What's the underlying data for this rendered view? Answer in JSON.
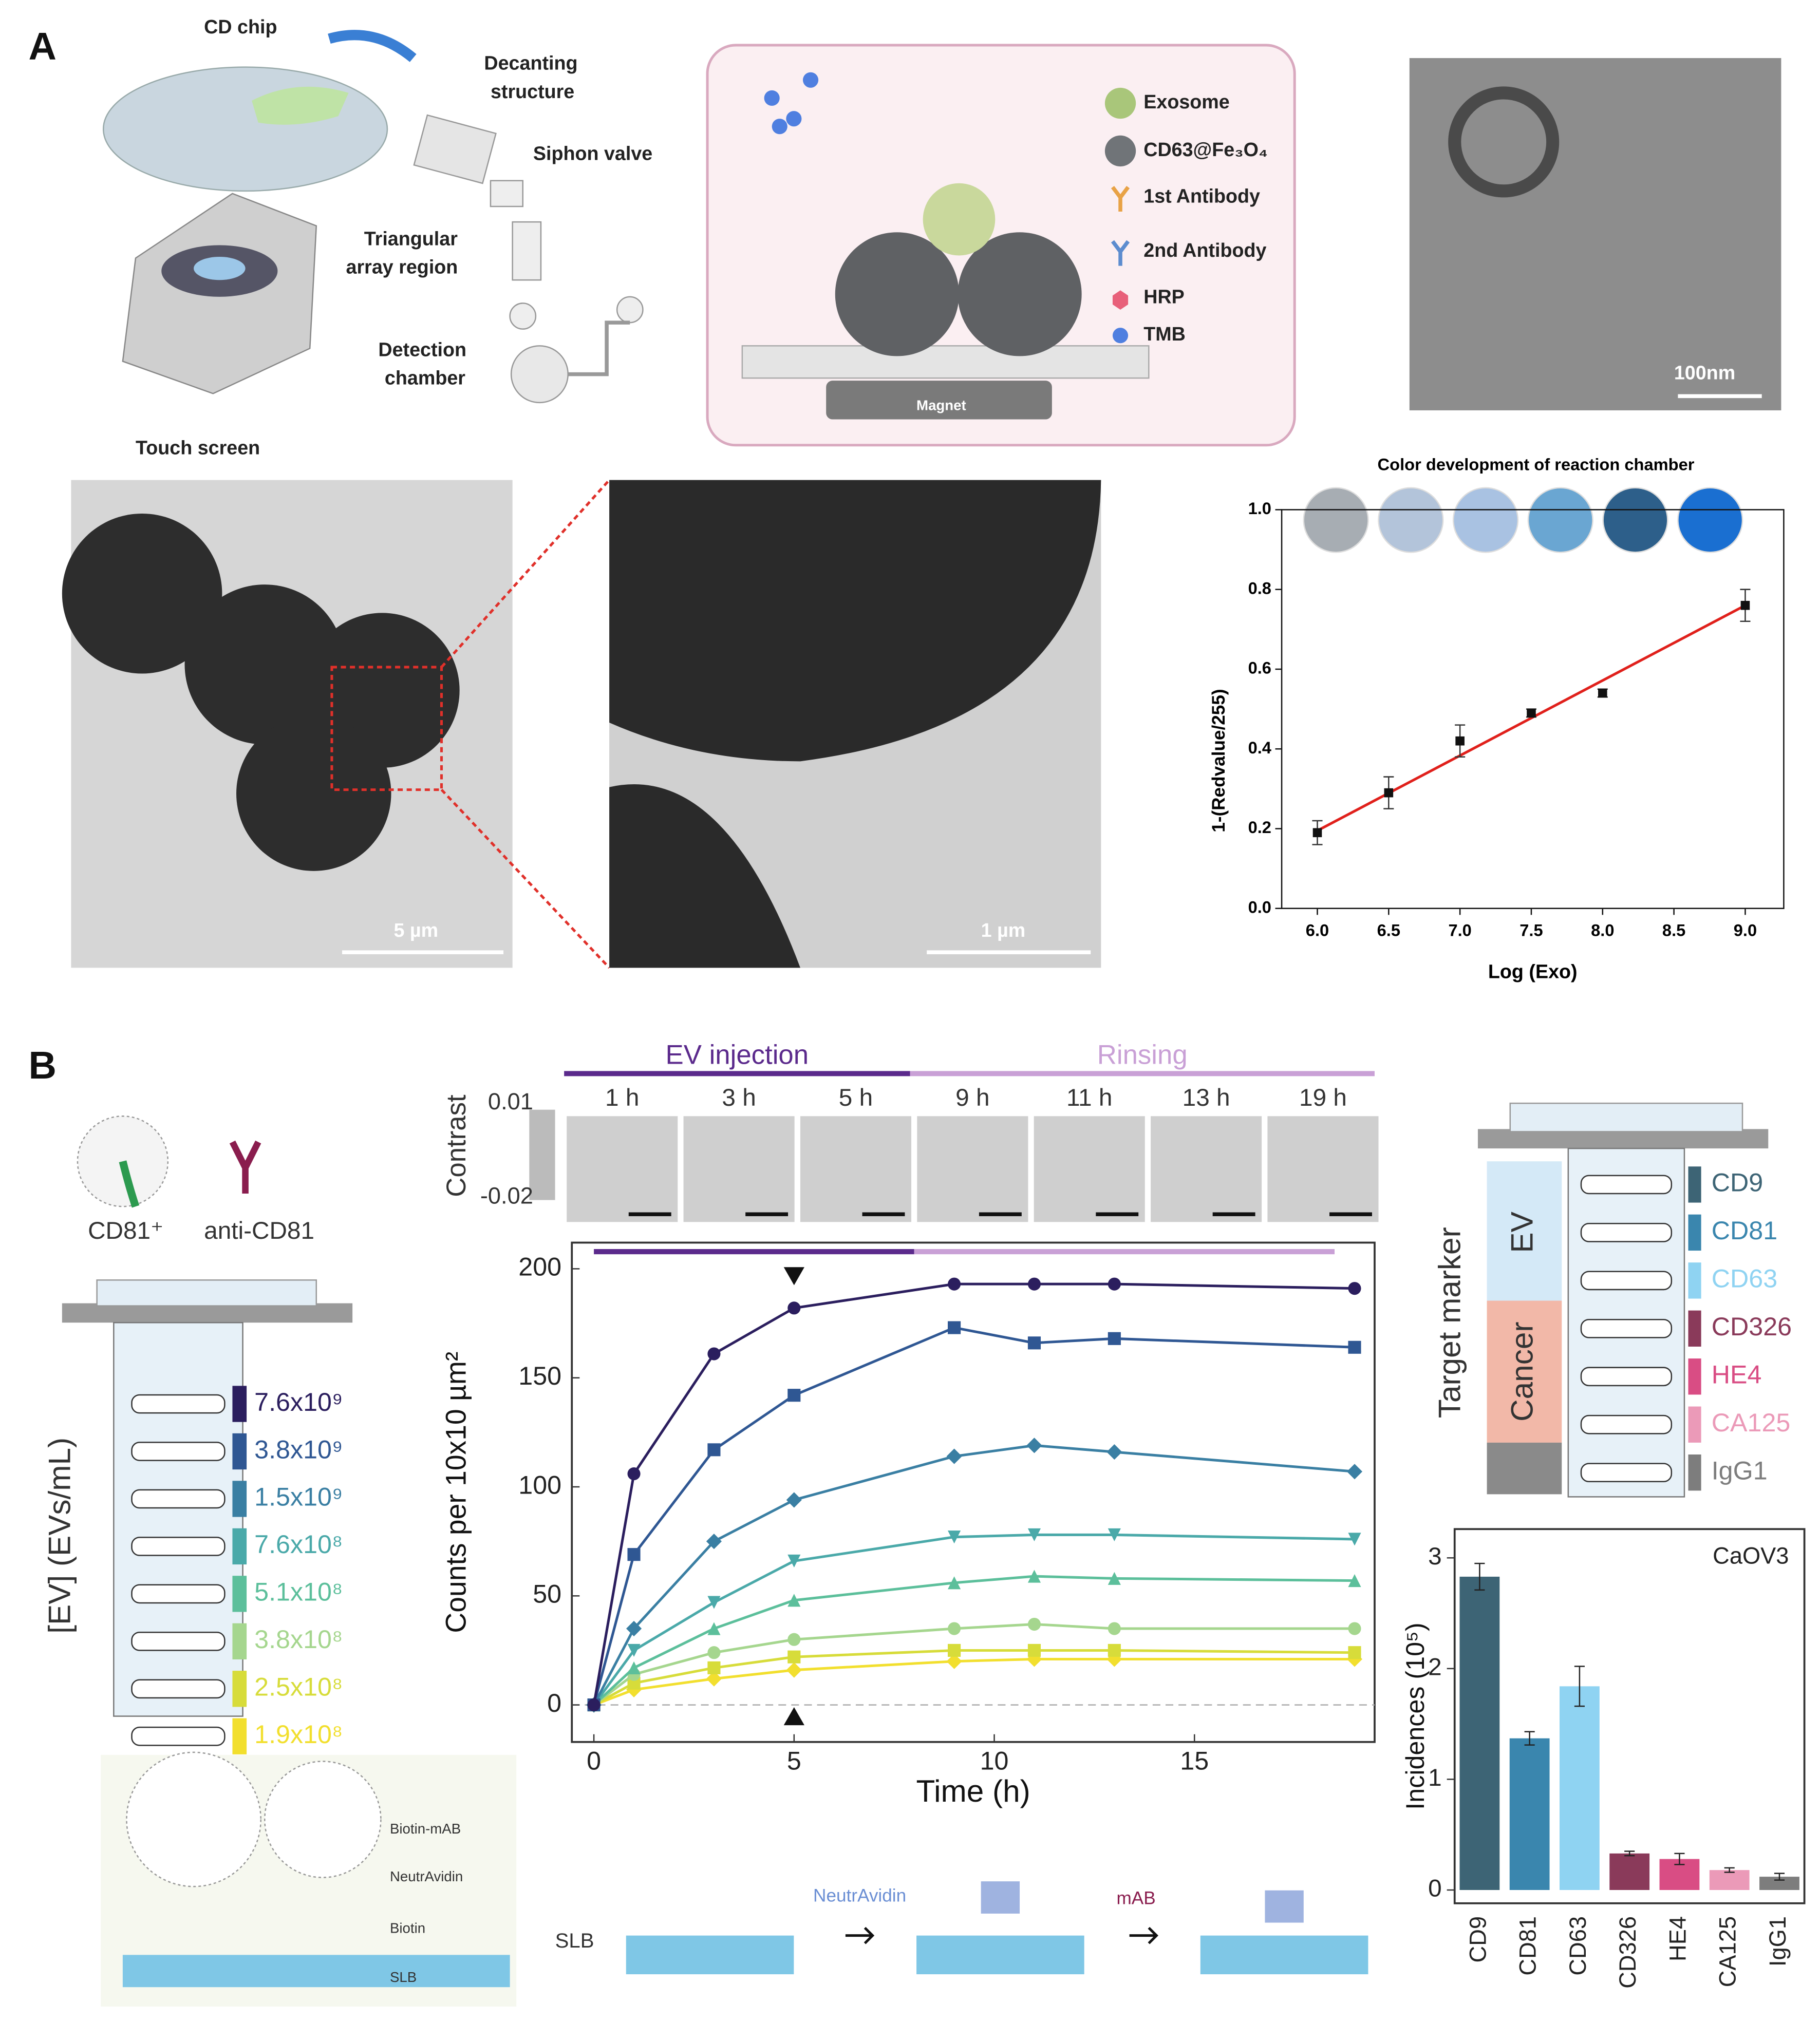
{
  "panel_labels": [
    "A",
    "B"
  ],
  "diagram_a": {
    "cd_chip": "CD chip",
    "decanting": [
      "Decanting",
      "structure"
    ],
    "siphon": "Siphon valve",
    "triangular": [
      "Triangular",
      "array region"
    ],
    "detection": [
      "Detection",
      "chamber"
    ],
    "touch_screen": "Touch screen",
    "legend": [
      "Exosome",
      "CD63@Fe₃O₄",
      "1st Antibody",
      "2nd Antibody",
      "HRP",
      "TMB"
    ],
    "magnet": "Magnet",
    "tem_scale": "100nm",
    "sem_scales": [
      "5 µm",
      "1 µm"
    ]
  },
  "diagram_b": {
    "cd81": "CD81⁺",
    "anti": "anti-CD81",
    "conc_axis": "[EV] (EVs/mL)",
    "contrast": "Contrast",
    "contrast_ticks": [
      "0.01",
      "-0.02"
    ],
    "frame_labels": [
      "1 h",
      "3 h",
      "5 h",
      "9 h",
      "11 h",
      "13 h",
      "19 h"
    ],
    "schematic_legend": [
      "Biotin-mAB",
      "NeutrAvidin",
      "Biotin",
      "SLB"
    ],
    "slb": "SLB",
    "step1": "NeutrAvidin",
    "step2": "mAB",
    "target_axis": "Target marker",
    "groups": [
      "EV",
      "Cancer"
    ],
    "markers": [
      {
        "label": "CD9",
        "color": "#3d6475"
      },
      {
        "label": "CD81",
        "color": "#3a86ae"
      },
      {
        "label": "CD63",
        "color": "#8fd3f2"
      },
      {
        "label": "CD326",
        "color": "#8a3a5a"
      },
      {
        "label": "HE4",
        "color": "#d94d84"
      },
      {
        "label": "CA125",
        "color": "#eb9ab8"
      },
      {
        "label": "IgG1",
        "color": "#7d7d7d"
      }
    ]
  },
  "chart_data": [
    {
      "type": "scatter",
      "title": "Color development of reaction chamber",
      "x_label": "Log (Exo)",
      "y_label": "1-(Redvalue/255)",
      "x": [
        6.0,
        6.5,
        7.0,
        7.5,
        8.0,
        9.0
      ],
      "values": [
        0.19,
        0.29,
        0.42,
        0.49,
        0.54,
        0.76
      ],
      "errors": [
        0.03,
        0.04,
        0.04,
        0.01,
        0.01,
        0.04
      ],
      "color": "#111111",
      "fit": {
        "x": [
          6.0,
          9.0
        ],
        "y": [
          0.195,
          0.76
        ],
        "color": "#e0201b"
      },
      "swatch_colors": [
        "#a7adb3",
        "#b3c4da",
        "#a9c2e2",
        "#6aa6d2",
        "#2d5f8a",
        "#1a6fd1"
      ],
      "xlim": [
        5.75,
        9.27
      ],
      "ylim": [
        0,
        1
      ],
      "xticks": [
        {
          "value": 6,
          "label": "6.0"
        },
        {
          "value": 6.5,
          "label": "6.5"
        },
        {
          "value": 7,
          "label": "7.0"
        },
        {
          "value": 7.5,
          "label": "7.5"
        },
        {
          "value": 8,
          "label": "8.0"
        },
        {
          "value": 8.5,
          "label": "8.5"
        },
        {
          "value": 9,
          "label": "9.0"
        }
      ],
      "yticks": [
        {
          "value": 0,
          "label": "0.0"
        },
        {
          "value": 0.2,
          "label": "0.2"
        },
        {
          "value": 0.4,
          "label": "0.4"
        },
        {
          "value": 0.6,
          "label": "0.6"
        },
        {
          "value": 0.8,
          "label": "0.8"
        },
        {
          "value": 1,
          "label": "1.0"
        }
      ]
    },
    {
      "type": "line",
      "x_label": "Time (h)",
      "y_label": "Counts per 10x10 µm²",
      "x": [
        0,
        1,
        3,
        5,
        9,
        11,
        13,
        19
      ],
      "series": [
        {
          "name": "7.6x10⁹",
          "color": "#2b1e5e",
          "marker": "circle",
          "values": [
            0,
            106,
            161,
            182,
            193,
            193,
            193,
            191
          ]
        },
        {
          "name": "3.8x10⁹",
          "color": "#2f5793",
          "marker": "square",
          "values": [
            0,
            69,
            117,
            142,
            173,
            166,
            168,
            164
          ]
        },
        {
          "name": "1.5x10⁹",
          "color": "#3a7fa3",
          "marker": "diamond",
          "values": [
            0,
            35,
            75,
            94,
            114,
            119,
            116,
            107
          ]
        },
        {
          "name": "7.6x10⁸",
          "color": "#4aa9a9",
          "marker": "tri-down",
          "values": [
            0,
            25,
            47,
            66,
            77,
            78,
            78,
            76
          ]
        },
        {
          "name": "5.1x10⁸",
          "color": "#5cbf9b",
          "marker": "tri-up",
          "values": [
            0,
            17,
            35,
            48,
            56,
            59,
            58,
            57
          ]
        },
        {
          "name": "3.8x10⁸",
          "color": "#a5d68e",
          "marker": "circle",
          "values": [
            0,
            14,
            24,
            30,
            35,
            37,
            35,
            35
          ]
        },
        {
          "name": "2.5x10⁸",
          "color": "#d7dc3a",
          "marker": "square",
          "values": [
            0,
            10,
            17,
            22,
            25,
            25,
            25,
            24
          ]
        },
        {
          "name": "1.9x10⁸",
          "color": "#f2df2e",
          "marker": "diamond",
          "values": [
            0,
            7,
            12,
            16,
            20,
            21,
            21,
            21
          ]
        }
      ],
      "phases": [
        {
          "label": "EV injection",
          "start": 0,
          "end": 8,
          "color": "#5b2a8c"
        },
        {
          "label": "Rinsing",
          "start": 8,
          "end": 18.5,
          "color": "#c9a0d6"
        }
      ],
      "arrow_x": 5,
      "xlim": [
        -0.55,
        19.5
      ],
      "ylim": [
        -17,
        212
      ],
      "xticks": [
        0,
        5,
        10,
        15
      ],
      "yticks": [
        0,
        50,
        100,
        150,
        200
      ]
    },
    {
      "type": "bar",
      "annotation": "CaOV3",
      "y_label": "Incidences (10⁵)",
      "categories": [
        "CD9",
        "CD81",
        "CD63",
        "CD326",
        "HE4",
        "CA125",
        "IgG1"
      ],
      "values": [
        2.83,
        1.37,
        1.84,
        0.33,
        0.28,
        0.18,
        0.12
      ],
      "errors": [
        0.12,
        0.06,
        0.18,
        0.02,
        0.05,
        0.02,
        0.03
      ],
      "colors": [
        "#3d6475",
        "#3a86ae",
        "#8fd3f2",
        "#8a3a5a",
        "#d94d84",
        "#eb9ab8",
        "#7d7d7d"
      ],
      "ylim": [
        -0.12,
        3.26
      ],
      "yticks": [
        0,
        1,
        2,
        3
      ]
    }
  ]
}
